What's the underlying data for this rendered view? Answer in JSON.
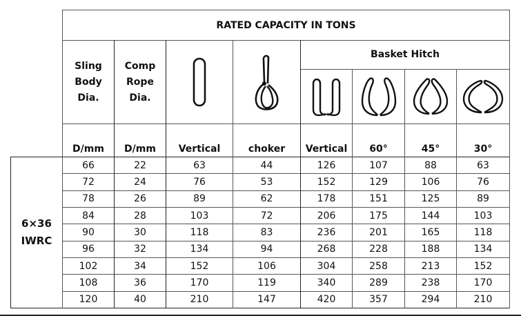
{
  "table": {
    "title": "RATED CAPACITY IN TONS",
    "headers": {
      "sling_body_dia": "Sling Body Dia.",
      "sling_body_lines": [
        "Sling",
        "Body",
        "Dia."
      ],
      "comp_rope_dia_lines": [
        "Comp",
        "Rope",
        "Dia."
      ],
      "basket_hitch": "Basket Hitch"
    },
    "icons": {
      "vertical": "vertical-loop-icon",
      "choker": "choker-hitch-icon",
      "basket_vertical": "basket-vertical-icon",
      "basket_60": "basket-60-icon",
      "basket_45": "basket-45-icon",
      "basket_30": "basket-30-icon"
    },
    "units": [
      "D/mm",
      "D/mm",
      "Vertical",
      "choker",
      "Vertical",
      "60°",
      "45°",
      "30°"
    ],
    "group_label_lines": [
      "6×36",
      "IWRC"
    ],
    "rows": [
      [
        "66",
        "22",
        "63",
        "44",
        "126",
        "107",
        "88",
        "63"
      ],
      [
        "72",
        "24",
        "76",
        "53",
        "152",
        "129",
        "106",
        "76"
      ],
      [
        "78",
        "26",
        "89",
        "62",
        "178",
        "151",
        "125",
        "89"
      ],
      [
        "84",
        "28",
        "103",
        "72",
        "206",
        "175",
        "144",
        "103"
      ],
      [
        "90",
        "30",
        "118",
        "83",
        "236",
        "201",
        "165",
        "118"
      ],
      [
        "96",
        "32",
        "134",
        "94",
        "268",
        "228",
        "188",
        "134"
      ],
      [
        "102",
        "34",
        "152",
        "106",
        "304",
        "258",
        "213",
        "152"
      ],
      [
        "108",
        "36",
        "170",
        "119",
        "340",
        "289",
        "238",
        "170"
      ],
      [
        "120",
        "40",
        "210",
        "147",
        "420",
        "357",
        "294",
        "210"
      ]
    ]
  },
  "colors": {
    "grid": "#555555",
    "text": "#111111",
    "background": "#ffffff"
  }
}
